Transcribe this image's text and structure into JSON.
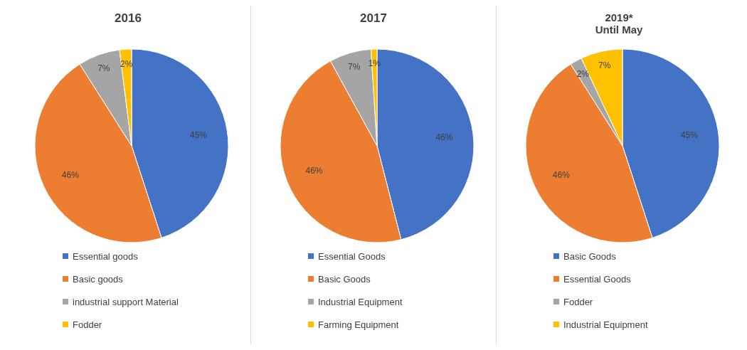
{
  "chart_data": [
    {
      "type": "pie",
      "title": "2016",
      "categories": [
        "Essential goods",
        "Basic goods",
        "industrial support Material",
        "Fodder"
      ],
      "values": [
        45,
        46,
        7,
        2
      ],
      "value_labels": [
        "45%",
        "46%",
        "7%",
        "2%"
      ],
      "colors": [
        "#4472c4",
        "#ed7d31",
        "#a5a5a5",
        "#ffc000"
      ],
      "legend": "bottom"
    },
    {
      "type": "pie",
      "title": "2017",
      "categories": [
        "Essential Goods",
        "Basic Goods",
        "Industrial Equipment",
        "Farming Equipment"
      ],
      "values": [
        46,
        46,
        7,
        1
      ],
      "value_labels": [
        "46%",
        "46%",
        "7%",
        "1%"
      ],
      "colors": [
        "#4472c4",
        "#ed7d31",
        "#a5a5a5",
        "#ffc000"
      ],
      "legend": "bottom"
    },
    {
      "type": "pie",
      "title": "2019*",
      "subtitle": "Until May",
      "categories": [
        "Basic Goods",
        "Essential Goods",
        "Fodder",
        "Industrial Equipment"
      ],
      "values": [
        45,
        46,
        2,
        7
      ],
      "value_labels": [
        "45%",
        "46%",
        "2%",
        "7%"
      ],
      "colors": [
        "#4472c4",
        "#ed7d31",
        "#a5a5a5",
        "#ffc000"
      ],
      "legend": "bottom"
    }
  ]
}
